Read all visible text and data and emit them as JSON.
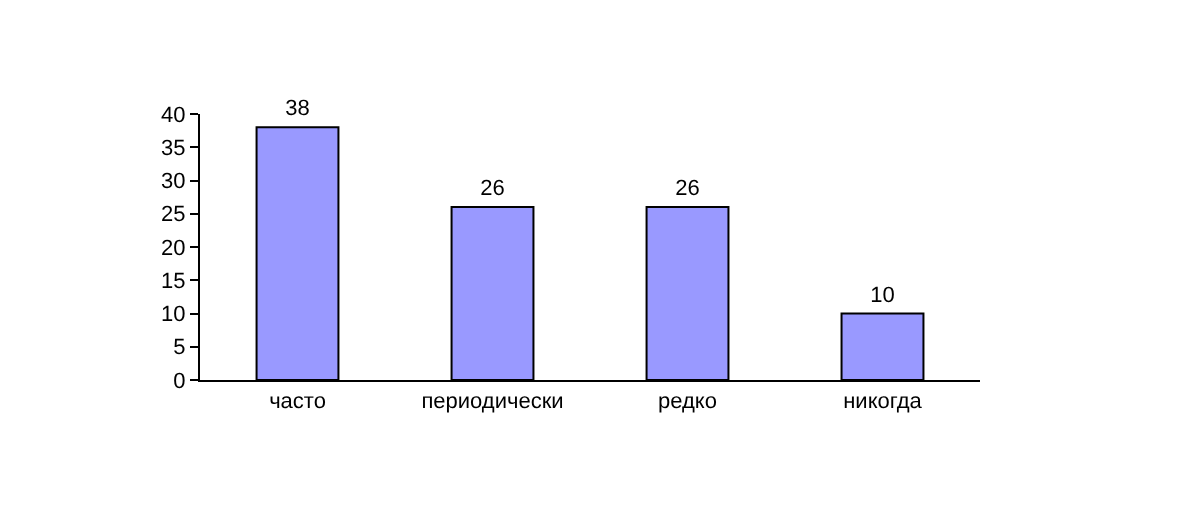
{
  "chart_data": {
    "type": "bar",
    "categories": [
      "часто",
      "периодически",
      "редко",
      "никогда"
    ],
    "values": [
      38,
      26,
      26,
      10
    ],
    "color": "#9999ff",
    "ylim": [
      0,
      40
    ],
    "yticks": [
      0,
      5,
      10,
      15,
      20,
      25,
      30,
      35,
      40
    ],
    "grid": false,
    "data_labels": true
  }
}
